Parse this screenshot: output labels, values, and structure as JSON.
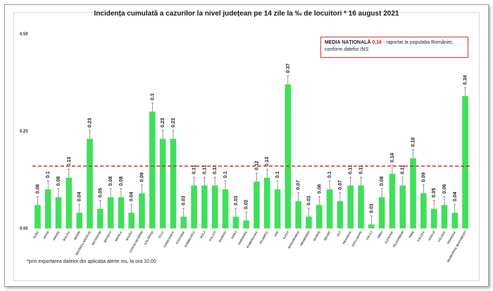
{
  "chart_data": {
    "type": "bar",
    "title": "Incidența cumulată a cazurilor la nivel județean pe 14 zile la ‰ de locuitori *  16 august 2021",
    "categories": [
      "ALBA",
      "ARAD",
      "ARGEȘ",
      "BACĂU",
      "BIHOR",
      "BISTRIȚA-NĂSĂUD",
      "BOTOȘANI",
      "BRAȘOV",
      "BRĂILA",
      "BUZĂU",
      "CARAȘ-SEVERIN",
      "CĂLĂRAȘI",
      "CLUJ",
      "CONSTANȚA",
      "COVASNA",
      "DÂMBOVIȚA",
      "DOLJ",
      "GALAȚI",
      "GIURGIU",
      "GORJ",
      "HARGHITA",
      "HUNEDOARA",
      "IALOMIȚA",
      "IAȘI",
      "ILFOV",
      "MARAMUREȘ",
      "MEHEDINȚI",
      "MUREȘ",
      "NEAMȚ",
      "OLT",
      "PRAHOVA",
      "SATU MARE",
      "SĂLAJ",
      "SIBIU",
      "SUCEAVA",
      "TELEORMAN",
      "TIMIȘ",
      "TULCEA",
      "VASLUI",
      "VÂLCEA",
      "VRANCEA",
      "MUNICIPIUL BUCUREȘTI"
    ],
    "values": [
      0.06,
      0.1,
      0.08,
      0.13,
      0.04,
      0.23,
      0.05,
      0.08,
      0.08,
      0.04,
      0.09,
      0.3,
      0.23,
      0.23,
      0.03,
      0.11,
      0.11,
      0.11,
      0.1,
      0.03,
      0.02,
      0.12,
      0.13,
      0.1,
      0.37,
      0.07,
      0.03,
      0.06,
      0.1,
      0.07,
      0.11,
      0.11,
      0.01,
      0.08,
      0.14,
      0.11,
      0.18,
      0.09,
      0.05,
      0.06,
      0.04,
      0.34
    ],
    "value_labels": [
      "0.06",
      "0.1",
      "0.08",
      "0.13",
      "0.04",
      "0.23",
      "0.05",
      "0.08",
      "0.08",
      "0.04",
      "0.09",
      "0.3",
      "0.23",
      "0.23",
      "0.03",
      "0.11",
      "0.11",
      "0.11",
      "0.1",
      "0.03",
      "0.02",
      "0.12",
      "0.13",
      "0.1",
      "0.37",
      "0.07",
      "0.03",
      "0.06",
      "0.1",
      "0.07",
      "0.11",
      "0.11",
      "0.01",
      "0.08",
      "0.14",
      "0.11",
      "0.18",
      "0.09",
      "0.05",
      "0.06",
      "0.04",
      "0.34"
    ],
    "error_bars": true,
    "ylim": [
      0,
      0.5
    ],
    "yticks": [
      "0.00",
      "0.25",
      "0.50"
    ],
    "reference_line": {
      "value": 0.16,
      "style": "dashed"
    },
    "colors": {
      "bar": "#3ee05a",
      "reference_line": "#d91c1c",
      "error_bar": "#555555"
    }
  },
  "note": {
    "label": "MEDIA NAȚIONALĂ",
    "value": "0,16",
    "text": " - raportat la populația României, conform datelor INS"
  },
  "footnote": "*prin exportarea datelor din aplicația alerte.ms, la ora 10.00"
}
